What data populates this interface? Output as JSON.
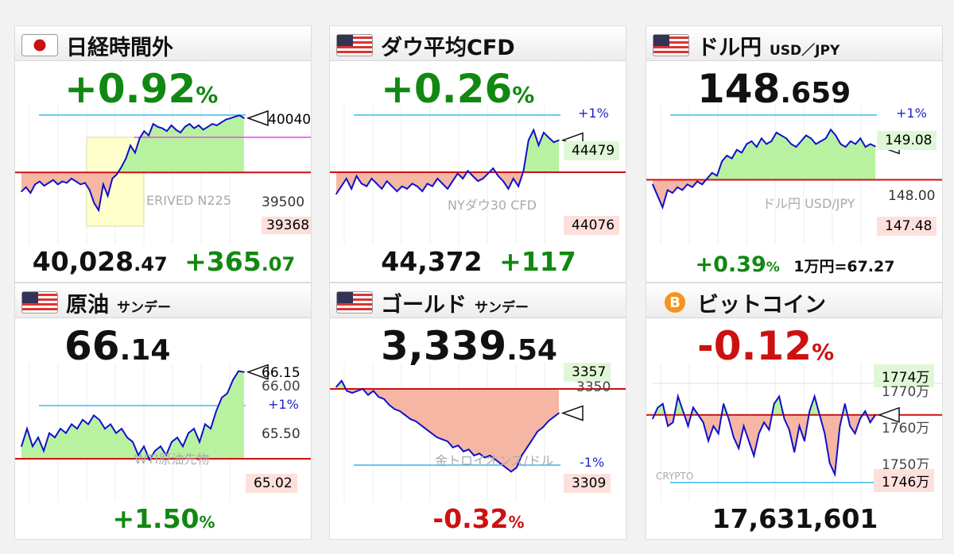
{
  "cards": [
    {
      "title": "日経時間外",
      "subtitle": "",
      "flag": "jp",
      "change": "+0.92",
      "change_unit": "%",
      "change_color": "pos",
      "price_main": "40,028",
      "price_dec": ".47",
      "diff_main": "+365",
      "diff_dec": ".07",
      "watermark": "ERIVED N225",
      "labels": {
        "top": "40040",
        "mid": "39500",
        "low": "39368"
      }
    },
    {
      "title": "ダウ平均CFD",
      "subtitle": "",
      "flag": "us",
      "change": "+0.26",
      "change_unit": "%",
      "change_color": "pos",
      "price_main": "44,372",
      "diff_main": "+117",
      "watermark": "NYダウ30 CFD",
      "labels": {
        "top": "44479",
        "low": "44076",
        "pct": "+1%"
      }
    },
    {
      "title": "ドル円",
      "subtitle": "USD／JPY",
      "flag": "us",
      "price_main": "148",
      "price_dec": ".659",
      "foot_change": "+0.39",
      "foot_unit": "%",
      "rate": "1万円=67.27",
      "watermark": "ドル円 USD/JPY",
      "labels": {
        "top": "149.08",
        "mid": "148.00",
        "low": "147.48",
        "pct": "+1%"
      }
    },
    {
      "title": "原油",
      "subtitle": "サンデー",
      "flag": "us",
      "price_main": "66",
      "price_dec": ".14",
      "foot_change": "+1.50",
      "foot_unit": "%",
      "watermark": "WTI原油先物",
      "labels": {
        "top": "66.15",
        "l2": "66.00",
        "pct": "+1%",
        "mid": "65.50",
        "low": "65.02"
      }
    },
    {
      "title": "ゴールド",
      "subtitle": "サンデー",
      "flag": "us",
      "price_main": "3,339",
      "price_dec": ".54",
      "foot_change": "-0.32",
      "foot_unit": "%",
      "watermark": "金トロイオンス/ドル",
      "labels": {
        "top": "3357",
        "l2": "3350",
        "pct": "-1%",
        "low": "3309"
      }
    },
    {
      "title": "ビットコイン",
      "subtitle": "",
      "flag": "btc",
      "change": "-0.12",
      "change_unit": "%",
      "change_color": "neg",
      "price_main": "17,631,601",
      "watermark": "CRYPTO",
      "labels": {
        "top": "1774万",
        "l2": "1770万",
        "mid": "1760万",
        "l4": "1750万",
        "low": "1746万"
      }
    }
  ],
  "colors": {
    "up_fill": "#b8f2a0",
    "down_fill": "#f6b6a4",
    "line": "#1010cc",
    "prev_close": "#cc1111",
    "pct_line": "#33bbee",
    "pink_line": "#ee44ee",
    "tag_green": "#dff7d6",
    "tag_red": "#fde0dc"
  },
  "chart_data": [
    {
      "type": "area",
      "name": "日経時間外",
      "ylim": [
        39300,
        40100
      ],
      "baseline": 39663,
      "y": [
        39530,
        39560,
        39520,
        39580,
        39600,
        39570,
        39590,
        39610,
        39580,
        39600,
        39590,
        39620,
        39600,
        39580,
        39590,
        39540,
        39450,
        39400,
        39580,
        39500,
        39620,
        39650,
        39700,
        39760,
        39850,
        39800,
        39900,
        39950,
        39920,
        40000,
        39980,
        39970,
        39950,
        39990,
        39960,
        39940,
        39980,
        40000,
        39970,
        39990,
        39960,
        39980,
        40000,
        39990,
        40010,
        40030,
        40040,
        40050,
        40060,
        40040
      ]
    },
    {
      "type": "area",
      "name": "ダウ平均CFD",
      "ylim": [
        44050,
        44500
      ],
      "baseline": 44255,
      "y": [
        44170,
        44200,
        44230,
        44190,
        44240,
        44210,
        44200,
        44230,
        44210,
        44190,
        44220,
        44200,
        44180,
        44200,
        44190,
        44210,
        44200,
        44180,
        44210,
        44200,
        44230,
        44210,
        44190,
        44220,
        44250,
        44230,
        44260,
        44240,
        44220,
        44230,
        44250,
        44270,
        44240,
        44220,
        44190,
        44230,
        44200,
        44260,
        44380,
        44420,
        44360,
        44410,
        44390,
        44372,
        44380
      ]
    },
    {
      "type": "area",
      "name": "ドル円",
      "ylim": [
        147.3,
        149.3
      ],
      "baseline": 148.08,
      "y": [
        148.0,
        147.8,
        147.6,
        147.9,
        147.85,
        147.95,
        147.9,
        148.0,
        147.95,
        148.05,
        148.0,
        148.1,
        148.2,
        148.15,
        148.4,
        148.5,
        148.45,
        148.6,
        148.55,
        148.7,
        148.75,
        148.65,
        148.8,
        148.7,
        148.75,
        148.9,
        148.85,
        148.8,
        148.7,
        148.65,
        148.75,
        148.85,
        148.8,
        148.7,
        148.75,
        148.8,
        148.95,
        148.85,
        148.7,
        148.65,
        148.75,
        148.7,
        148.8,
        148.65,
        148.7,
        148.659
      ]
    },
    {
      "type": "area",
      "name": "原油",
      "ylim": [
        64.9,
        66.2
      ],
      "baseline": 65.16,
      "y": [
        65.3,
        65.5,
        65.3,
        65.4,
        65.25,
        65.45,
        65.4,
        65.5,
        65.45,
        65.55,
        65.5,
        65.6,
        65.55,
        65.65,
        65.6,
        65.5,
        65.55,
        65.45,
        65.5,
        65.4,
        65.35,
        65.2,
        65.3,
        65.15,
        65.25,
        65.3,
        65.2,
        65.35,
        65.4,
        65.3,
        65.45,
        65.5,
        65.35,
        65.55,
        65.5,
        65.7,
        65.85,
        65.9,
        66.05,
        66.15,
        66.14
      ]
    },
    {
      "type": "area",
      "name": "ゴールド",
      "ylim": [
        3305,
        3362
      ],
      "baseline": 3351,
      "y": [
        3352,
        3355,
        3350,
        3349,
        3350,
        3351,
        3348,
        3350,
        3347,
        3346,
        3343,
        3341,
        3340,
        3338,
        3336,
        3335,
        3333,
        3331,
        3329,
        3327,
        3326,
        3325,
        3322,
        3323,
        3320,
        3321,
        3318,
        3319,
        3317,
        3318,
        3316,
        3314,
        3312,
        3310,
        3312,
        3318,
        3322,
        3326,
        3330,
        3332,
        3335,
        3337,
        3339
      ]
    },
    {
      "type": "area",
      "name": "ビットコイン",
      "ylim": [
        1745,
        1776
      ],
      "baseline": 1763,
      "y": [
        1762,
        1765,
        1766,
        1760,
        1761,
        1768,
        1764,
        1760,
        1765,
        1763,
        1761,
        1756,
        1760,
        1758,
        1766,
        1762,
        1757,
        1754,
        1760,
        1756,
        1752,
        1758,
        1761,
        1759,
        1766,
        1768,
        1762,
        1759,
        1753,
        1760,
        1756,
        1764,
        1768,
        1763,
        1758,
        1750,
        1747,
        1760,
        1766,
        1760,
        1758,
        1762,
        1764,
        1761,
        1763
      ]
    }
  ]
}
